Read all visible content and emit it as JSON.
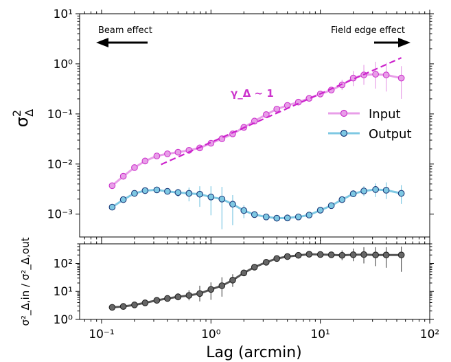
{
  "chart_data": [
    {
      "type": "line",
      "xscale": "log",
      "yscale": "log",
      "xlim": [
        0.063,
        100
      ],
      "ylim": [
        0.00035,
        10
      ],
      "ylabel": "σ²_Δ",
      "yticks": [
        "10⁻³",
        "10⁻²",
        "10⁻¹",
        "10⁰",
        "10¹"
      ],
      "annotations": {
        "left_text": "Beam effect",
        "right_text": "Field edge effect",
        "slope_label": "γ_Δ ~ 1"
      },
      "legend_position": "center-right",
      "colors": {
        "input": "#cc33cc",
        "input_line": "#e89ee8",
        "output": "#1f77b4",
        "output_line": "#7ec8e3",
        "fit": "#cc22cc"
      },
      "x": [
        0.125,
        0.158,
        0.2,
        0.25,
        0.32,
        0.4,
        0.5,
        0.63,
        0.79,
        1.0,
        1.26,
        1.58,
        2.0,
        2.5,
        3.2,
        4.0,
        5.0,
        6.3,
        7.9,
        10.0,
        12.6,
        15.8,
        20.0,
        25.0,
        32.0,
        40.0,
        55.0
      ],
      "series": [
        {
          "name": "Input",
          "values": [
            0.0037,
            0.0057,
            0.0085,
            0.0115,
            0.0145,
            0.016,
            0.0172,
            0.0188,
            0.021,
            0.026,
            0.032,
            0.04,
            0.054,
            0.072,
            0.097,
            0.125,
            0.148,
            0.172,
            0.205,
            0.25,
            0.3,
            0.38,
            0.52,
            0.6,
            0.62,
            0.6,
            0.52
          ],
          "err_low": [
            0.0034,
            0.0052,
            0.0078,
            0.0106,
            0.0134,
            0.0148,
            0.0159,
            0.0174,
            0.0194,
            0.024,
            0.0296,
            0.037,
            0.05,
            0.067,
            0.09,
            0.116,
            0.137,
            0.158,
            0.188,
            0.229,
            0.26,
            0.3,
            0.36,
            0.38,
            0.32,
            0.28,
            0.2
          ],
          "err_high": [
            0.004,
            0.0062,
            0.0092,
            0.0124,
            0.0156,
            0.0172,
            0.0185,
            0.0202,
            0.0226,
            0.028,
            0.0344,
            0.043,
            0.058,
            0.077,
            0.104,
            0.134,
            0.159,
            0.186,
            0.222,
            0.27,
            0.34,
            0.48,
            0.72,
            0.95,
            1.1,
            1.05,
            0.9
          ]
        },
        {
          "name": "Output",
          "values": [
            0.00138,
            0.00195,
            0.0026,
            0.00295,
            0.00305,
            0.00285,
            0.0027,
            0.0026,
            0.0025,
            0.0022,
            0.002,
            0.00158,
            0.00118,
            0.00098,
            0.00088,
            0.00083,
            0.00084,
            0.00088,
            0.00096,
            0.0012,
            0.00148,
            0.00195,
            0.00255,
            0.0029,
            0.0031,
            0.003,
            0.0026
          ],
          "err_low": [
            0.00128,
            0.00182,
            0.00243,
            0.00275,
            0.00283,
            0.0025,
            0.0022,
            0.0018,
            0.0014,
            0.00095,
            0.0005,
            0.0006,
            0.00083,
            0.00088,
            0.00081,
            0.00077,
            0.00078,
            0.00081,
            0.00088,
            0.0011,
            0.00135,
            0.00175,
            0.0022,
            0.0023,
            0.0022,
            0.002,
            0.0016
          ],
          "err_high": [
            0.00148,
            0.0021,
            0.0028,
            0.0032,
            0.0033,
            0.0032,
            0.0032,
            0.0034,
            0.0036,
            0.0036,
            0.0035,
            0.0024,
            0.0015,
            0.00108,
            0.00095,
            0.0009,
            0.0009,
            0.00095,
            0.00104,
            0.0013,
            0.0016,
            0.0022,
            0.003,
            0.0036,
            0.0041,
            0.0043,
            0.0038
          ]
        }
      ],
      "fit_line": {
        "x": [
          0.35,
          55.0
        ],
        "y": [
          0.0098,
          1.32
        ]
      }
    },
    {
      "type": "line",
      "xscale": "log",
      "yscale": "log",
      "xlim": [
        0.063,
        100
      ],
      "ylim": [
        1,
        500
      ],
      "xlabel": "Lag (arcmin)",
      "ylabel": "σ²_Δ,in / σ²_Δ,out",
      "xticks": [
        "10⁻¹",
        "10⁰",
        "10¹",
        "10²"
      ],
      "yticks": [
        "10⁰",
        "10¹",
        "10²"
      ],
      "colors": {
        "marker": "#666666",
        "line": "#555555"
      },
      "x": [
        0.125,
        0.158,
        0.2,
        0.25,
        0.32,
        0.4,
        0.5,
        0.63,
        0.79,
        1.0,
        1.26,
        1.58,
        2.0,
        2.5,
        3.2,
        4.0,
        5.0,
        6.3,
        7.9,
        10.0,
        12.6,
        15.8,
        20.0,
        25.0,
        32.0,
        40.0,
        55.0
      ],
      "series": [
        {
          "values": [
            2.7,
            2.9,
            3.3,
            3.9,
            4.8,
            5.6,
            6.4,
            7.2,
            8.4,
            11.8,
            16,
            25.3,
            45.8,
            73.5,
            110,
            150,
            176,
            195,
            213,
            208,
            203,
            195,
            204,
            207,
            200,
            200,
            200
          ],
          "err_low": [
            2.4,
            2.6,
            2.9,
            3.4,
            4.0,
            4.5,
            4.8,
            4.8,
            4.4,
            5.0,
            6.5,
            14.5,
            36,
            67,
            104,
            142,
            166,
            184,
            200,
            188,
            165,
            130,
            120,
            100,
            80,
            70,
            50
          ],
          "err_high": [
            3.0,
            3.2,
            3.7,
            4.4,
            5.6,
            6.8,
            8.5,
            11,
            16,
            21,
            32,
            41,
            60,
            84,
            118,
            160,
            188,
            208,
            228,
            232,
            258,
            290,
            340,
            380,
            380,
            380,
            400
          ]
        }
      ]
    }
  ],
  "legend": {
    "input_label": "Input",
    "output_label": "Output"
  }
}
